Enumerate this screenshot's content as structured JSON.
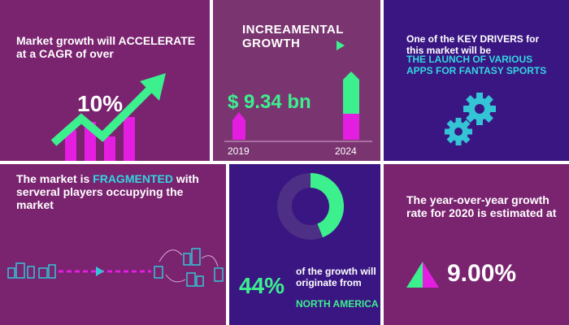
{
  "panels": {
    "cagr": {
      "headline": "Market growth will ACCELERATE at  a CAGR of over",
      "value": "10%"
    },
    "incremental": {
      "headline": "INCREAMENTAL GROWTH",
      "amount": "$ 9.34 bn",
      "year_start": "2019",
      "year_end": "2024"
    },
    "drivers": {
      "line1": "One of the KEY DRIVERS for this market will be",
      "line2": "THE LAUNCH OF VARIOUS APPS FOR FANTASY SPORTS"
    },
    "fragmented": {
      "headline_pre": "The market is ",
      "headline_accent": "FRAGMENTED",
      "headline_post": " with serveral players occupying the market"
    },
    "region": {
      "value": "44%",
      "description": "of the growth will originate from",
      "region_name": "NORTH AMERICA",
      "share_fraction": 0.44
    },
    "yoy": {
      "headline": "The year-over-year growth rate for 2020 is estimated at",
      "value": "9.00%"
    }
  },
  "colors": {
    "magenta_panel": "#7a236f",
    "purple_panel": "#3a1683",
    "accent_green": "#3cf08e",
    "accent_cyan": "#33d6e0",
    "accent_pink": "#e31ee0"
  },
  "icons": [
    "trend-arrow-icon",
    "gears-icon",
    "city-network-icon",
    "donut-chart-icon",
    "triangle-icon"
  ]
}
